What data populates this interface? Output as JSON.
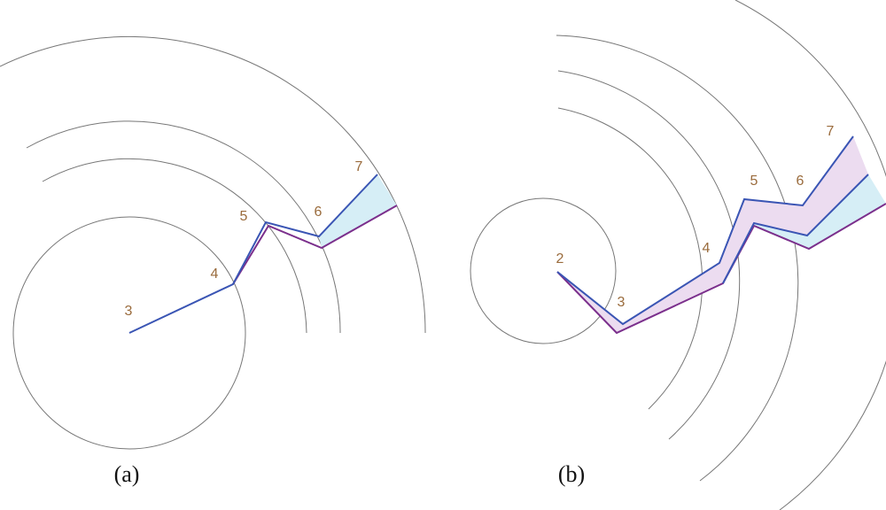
{
  "panels": [
    {
      "caption": "(a)",
      "node_labels": [
        "3",
        "4",
        "5",
        "6",
        "7"
      ]
    },
    {
      "caption": "(b)",
      "node_labels": [
        "2",
        "3",
        "4",
        "5",
        "6",
        "7"
      ]
    }
  ]
}
